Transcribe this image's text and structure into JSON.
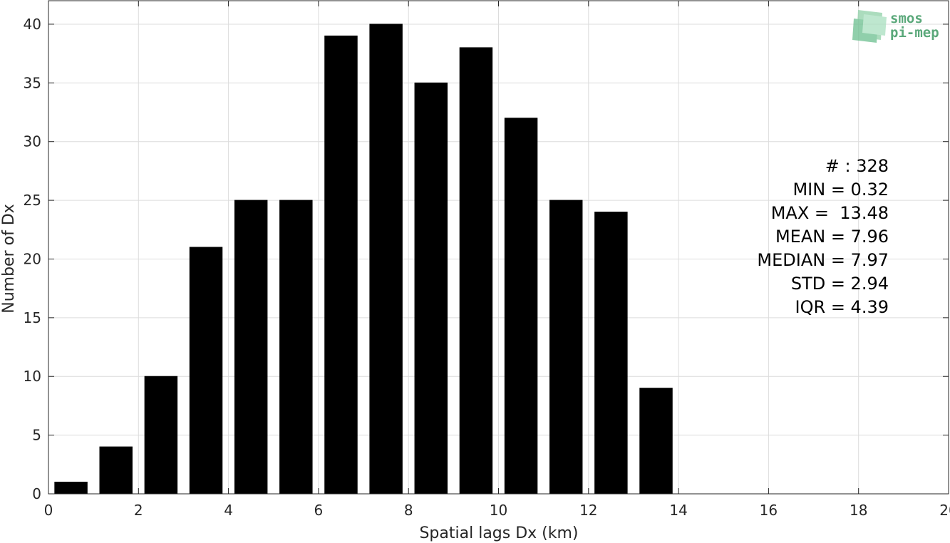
{
  "chart_data": {
    "type": "bar",
    "title": "",
    "xlabel": "Spatial lags Dx (km)",
    "ylabel": "Number of Dx",
    "xlim": [
      0,
      20
    ],
    "ylim": [
      0,
      42
    ],
    "xticks": [
      0,
      2,
      4,
      6,
      8,
      10,
      12,
      14,
      16,
      18,
      20
    ],
    "yticks": [
      0,
      5,
      10,
      15,
      20,
      25,
      30,
      35,
      40
    ],
    "grid": true,
    "bar_color": "#000000",
    "x": [
      0.5,
      1.5,
      2.5,
      3.5,
      4.5,
      5.5,
      6.5,
      7.5,
      8.5,
      9.5,
      10.5,
      11.5,
      12.5,
      13.5
    ],
    "values": [
      1,
      4,
      10,
      21,
      25,
      25,
      39,
      40,
      35,
      38,
      32,
      25,
      24,
      9
    ]
  },
  "stats": [
    "# : 328",
    "MIN = 0.32",
    "MAX =  13.48",
    "MEAN = 7.96",
    "MEDIAN = 7.97",
    "STD = 2.94",
    "IQR = 4.39"
  ],
  "logo": {
    "line1": "smos",
    "line2": "pi-mep",
    "color": "#5aa87a"
  }
}
